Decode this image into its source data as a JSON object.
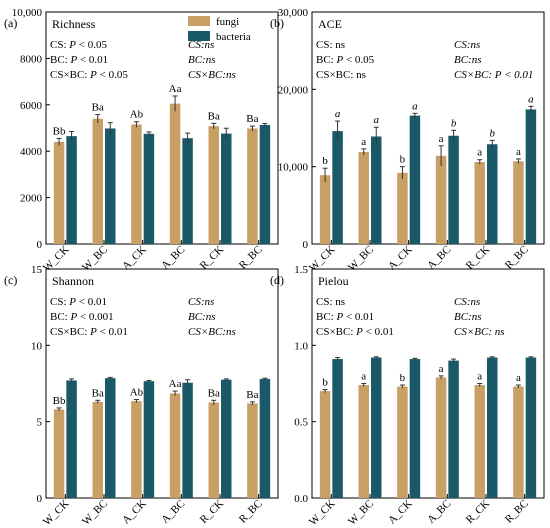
{
  "legend": {
    "entries": [
      {
        "label": "fungi",
        "color": "#c8a065"
      },
      {
        "label": "bacteria",
        "color": "#1a5a68"
      }
    ]
  },
  "chart_data": [
    {
      "type": "bar",
      "panel_label": "(a)",
      "title": "Richness",
      "categories": [
        "W_CK",
        "W_BC",
        "A_CK",
        "A_BC",
        "R_CK",
        "R_BC"
      ],
      "ylim": [
        0,
        10000
      ],
      "yticks": [
        0,
        2000,
        4000,
        6000,
        8000,
        10000
      ],
      "ytick_labels": [
        "0",
        "2000",
        "4000",
        "6000",
        "8000",
        "10,000"
      ],
      "series": [
        {
          "name": "fungi",
          "color": "#c8a065",
          "values": [
            4400,
            5400,
            5150,
            6050,
            5080,
            4980
          ],
          "errors": [
            150,
            180,
            120,
            330,
            120,
            100
          ],
          "letters": [
            "Bb",
            "Ba",
            "Ab",
            "Aa",
            "Ba",
            "Ba"
          ]
        },
        {
          "name": "bacteria",
          "color": "#1a5a68",
          "values": [
            4650,
            4980,
            4750,
            4560,
            4760,
            5130
          ],
          "errors": [
            200,
            250,
            80,
            220,
            230,
            60
          ],
          "letters": [
            "",
            "",
            "",
            "",
            "",
            ""
          ]
        }
      ],
      "stats_left": [
        {
          "pre": "CS: ",
          "italic": "P",
          "post": " < 0.05"
        },
        {
          "pre": "BC: ",
          "italic": "P",
          "post": " < 0.01"
        },
        {
          "pre": "CS×BC: ",
          "italic": "P",
          "post": " < 0.05"
        }
      ],
      "stats_right": [
        "CS:ns",
        "BC:ns",
        "CS×BC:ns"
      ]
    },
    {
      "type": "bar",
      "panel_label": "(b)",
      "title": "ACE",
      "categories": [
        "W_CK",
        "W_BC",
        "A_CK",
        "A_BC",
        "R_CK",
        "R_BC"
      ],
      "ylim": [
        0,
        30000
      ],
      "yticks": [
        0,
        10000,
        20000,
        30000
      ],
      "ytick_labels": [
        "0",
        "10,000",
        "20,000",
        "30,000"
      ],
      "series": [
        {
          "name": "fungi",
          "color": "#c8a065",
          "values": [
            8900,
            11900,
            9200,
            11400,
            10600,
            10700
          ],
          "errors": [
            900,
            400,
            800,
            1300,
            300,
            300
          ],
          "letters": [
            "b",
            "a",
            "b",
            "a",
            "a",
            "a"
          ]
        },
        {
          "name": "bacteria",
          "color": "#1a5a68",
          "values": [
            14600,
            13900,
            16600,
            14000,
            12900,
            17400
          ],
          "errors": [
            1300,
            1200,
            300,
            700,
            500,
            400
          ],
          "letters": [
            "a",
            "a",
            "a",
            "b",
            "b",
            "a"
          ]
        }
      ],
      "stats_left": [
        {
          "pre": "CS: ns",
          "italic": "",
          "post": ""
        },
        {
          "pre": "BC: ",
          "italic": "P",
          "post": " < 0.05"
        },
        {
          "pre": "CS×BC: ns",
          "italic": "",
          "post": ""
        }
      ],
      "stats_right": [
        "CS:ns",
        "BC:ns",
        "CS×BC: P < 0.01"
      ]
    },
    {
      "type": "bar",
      "panel_label": "(c)",
      "title": "Shannon",
      "categories": [
        "W_CK",
        "W_BC",
        "A_CK",
        "A_BC",
        "R_CK",
        "R_BC"
      ],
      "ylim": [
        0,
        15
      ],
      "yticks": [
        0,
        5,
        10,
        15
      ],
      "ytick_labels": [
        "0",
        "5",
        "10",
        "15"
      ],
      "series": [
        {
          "name": "fungi",
          "color": "#c8a065",
          "values": [
            5.8,
            6.3,
            6.35,
            6.85,
            6.25,
            6.2
          ],
          "errors": [
            0.1,
            0.1,
            0.1,
            0.15,
            0.15,
            0.1
          ],
          "letters": [
            "Bb",
            "Ba",
            "Ab",
            "Aa",
            "Ba",
            "Ba"
          ]
        },
        {
          "name": "bacteria",
          "color": "#1a5a68",
          "values": [
            7.7,
            7.85,
            7.65,
            7.55,
            7.75,
            7.8
          ],
          "errors": [
            0.1,
            0.05,
            0.05,
            0.2,
            0.05,
            0.05
          ],
          "letters": [
            "",
            "",
            "",
            "",
            "",
            ""
          ]
        }
      ],
      "stats_left": [
        {
          "pre": "CS: ",
          "italic": "P",
          "post": " < 0.01"
        },
        {
          "pre": "BC: ",
          "italic": "P",
          "post": " < 0.001"
        },
        {
          "pre": "CS×BC: ",
          "italic": "P",
          "post": " < 0.01"
        }
      ],
      "stats_right": [
        "CS:ns",
        "BC:ns",
        "CS×BC:ns"
      ]
    },
    {
      "type": "bar",
      "panel_label": "(d)",
      "title": "Pielou",
      "categories": [
        "W_CK",
        "W_BC",
        "A_CK",
        "A_BC",
        "R_CK",
        "R_BC"
      ],
      "ylim": [
        0,
        1.5
      ],
      "yticks": [
        0,
        0.5,
        1.0,
        1.5
      ],
      "ytick_labels": [
        "0.0",
        "0.5",
        "1.0",
        "1.5"
      ],
      "series": [
        {
          "name": "fungi",
          "color": "#c8a065",
          "values": [
            0.7,
            0.74,
            0.73,
            0.79,
            0.74,
            0.73
          ],
          "errors": [
            0.01,
            0.01,
            0.01,
            0.01,
            0.01,
            0.01
          ],
          "letters": [
            "b",
            "a",
            "b",
            "a",
            "a",
            "a"
          ]
        },
        {
          "name": "bacteria",
          "color": "#1a5a68",
          "values": [
            0.91,
            0.92,
            0.91,
            0.9,
            0.92,
            0.92
          ],
          "errors": [
            0.01,
            0.005,
            0.005,
            0.01,
            0.005,
            0.005
          ],
          "letters": [
            "",
            "",
            "",
            "",
            "",
            ""
          ]
        }
      ],
      "stats_left": [
        {
          "pre": "CS: ns",
          "italic": "",
          "post": ""
        },
        {
          "pre": "BC: ",
          "italic": "P",
          "post": " < 0.01"
        },
        {
          "pre": "CS×BC: ",
          "italic": "P",
          "post": " < 0.01"
        }
      ],
      "stats_right": [
        "CS:ns",
        "BC:ns",
        "CS×BC: ns"
      ]
    }
  ]
}
